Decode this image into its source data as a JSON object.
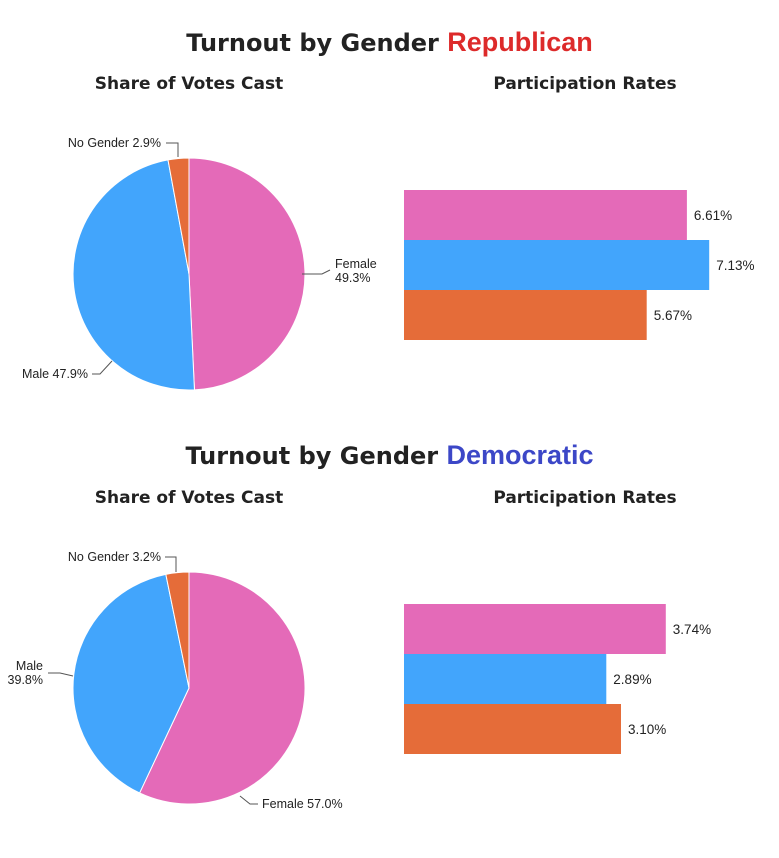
{
  "colors": {
    "female": "#e46ab8",
    "male": "#42a5fc",
    "no_gender": "#e56c39",
    "republican": "#dd2a2a",
    "democratic": "#3c47c7"
  },
  "panels": [
    {
      "title": "Turnout by Gender",
      "party": "Republican",
      "share_title": "Share of Votes Cast",
      "rates_title": "Participation Rates"
    },
    {
      "title": "Turnout by Gender",
      "party": "Democratic",
      "share_title": "Share of Votes Cast",
      "rates_title": "Participation Rates"
    }
  ],
  "chart_data": [
    {
      "type": "pie",
      "title": "Share of Votes Cast",
      "party": "Republican",
      "slices": [
        {
          "name": "Female",
          "value": 49.3,
          "label": "49.3%"
        },
        {
          "name": "Male",
          "value": 47.9,
          "label": "47.9%"
        },
        {
          "name": "No Gender",
          "value": 2.9,
          "label": "2.9%"
        }
      ]
    },
    {
      "type": "bar",
      "orientation": "horizontal",
      "title": "Participation Rates",
      "party": "Republican",
      "categories": [
        "Female",
        "Male",
        "No Gender"
      ],
      "values": [
        6.61,
        7.13,
        5.67
      ],
      "labels": [
        "6.61%",
        "7.13%",
        "5.67%"
      ]
    },
    {
      "type": "pie",
      "title": "Share of Votes Cast",
      "party": "Democratic",
      "slices": [
        {
          "name": "Female",
          "value": 57.0,
          "label": "57.0%"
        },
        {
          "name": "Male",
          "value": 39.8,
          "label": "39.8%"
        },
        {
          "name": "No Gender",
          "value": 3.2,
          "label": "3.2%"
        }
      ]
    },
    {
      "type": "bar",
      "orientation": "horizontal",
      "title": "Participation Rates",
      "party": "Democratic",
      "categories": [
        "Female",
        "Male",
        "No Gender"
      ],
      "values": [
        3.74,
        2.89,
        3.1
      ],
      "labels": [
        "3.74%",
        "2.89%",
        "3.10%"
      ]
    }
  ]
}
